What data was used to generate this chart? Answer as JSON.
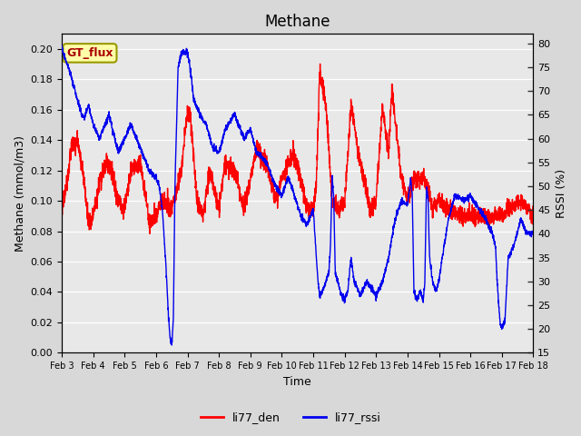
{
  "title": "Methane",
  "xlabel": "Time",
  "ylabel_left": "Methane (mmol/m3)",
  "ylabel_right": "RSSI (%)",
  "ylim_left": [
    0.0,
    0.21
  ],
  "ylim_right": [
    15,
    82
  ],
  "yticks_left": [
    0.0,
    0.02,
    0.04,
    0.06,
    0.08,
    0.1,
    0.12,
    0.14,
    0.16,
    0.18,
    0.2
  ],
  "yticks_right": [
    15,
    20,
    25,
    30,
    35,
    40,
    45,
    50,
    55,
    60,
    65,
    70,
    75,
    80
  ],
  "xtick_labels": [
    "Feb 3",
    "Feb 4",
    "Feb 5",
    "Feb 6",
    "Feb 7",
    "Feb 8",
    "Feb 9",
    "Feb 10",
    "Feb 11",
    "Feb 12",
    "Feb 13",
    "Feb 14",
    "Feb 15",
    "Feb 16",
    "Feb 17",
    "Feb 18"
  ],
  "color_den": "#ff0000",
  "color_rssi": "#0000ee",
  "legend_label_den": "li77_den",
  "legend_label_rssi": "li77_rssi",
  "annotation_text": "GT_flux",
  "annotation_color": "#aa0000",
  "annotation_bg": "#ffffaa",
  "annotation_edge": "#999900",
  "bg_color": "#d8d8d8",
  "plot_bg": "#e8e8e8",
  "grid_color": "#ffffff",
  "linewidth": 1.0,
  "title_fontsize": 12,
  "label_fontsize": 9,
  "tick_fontsize": 8
}
